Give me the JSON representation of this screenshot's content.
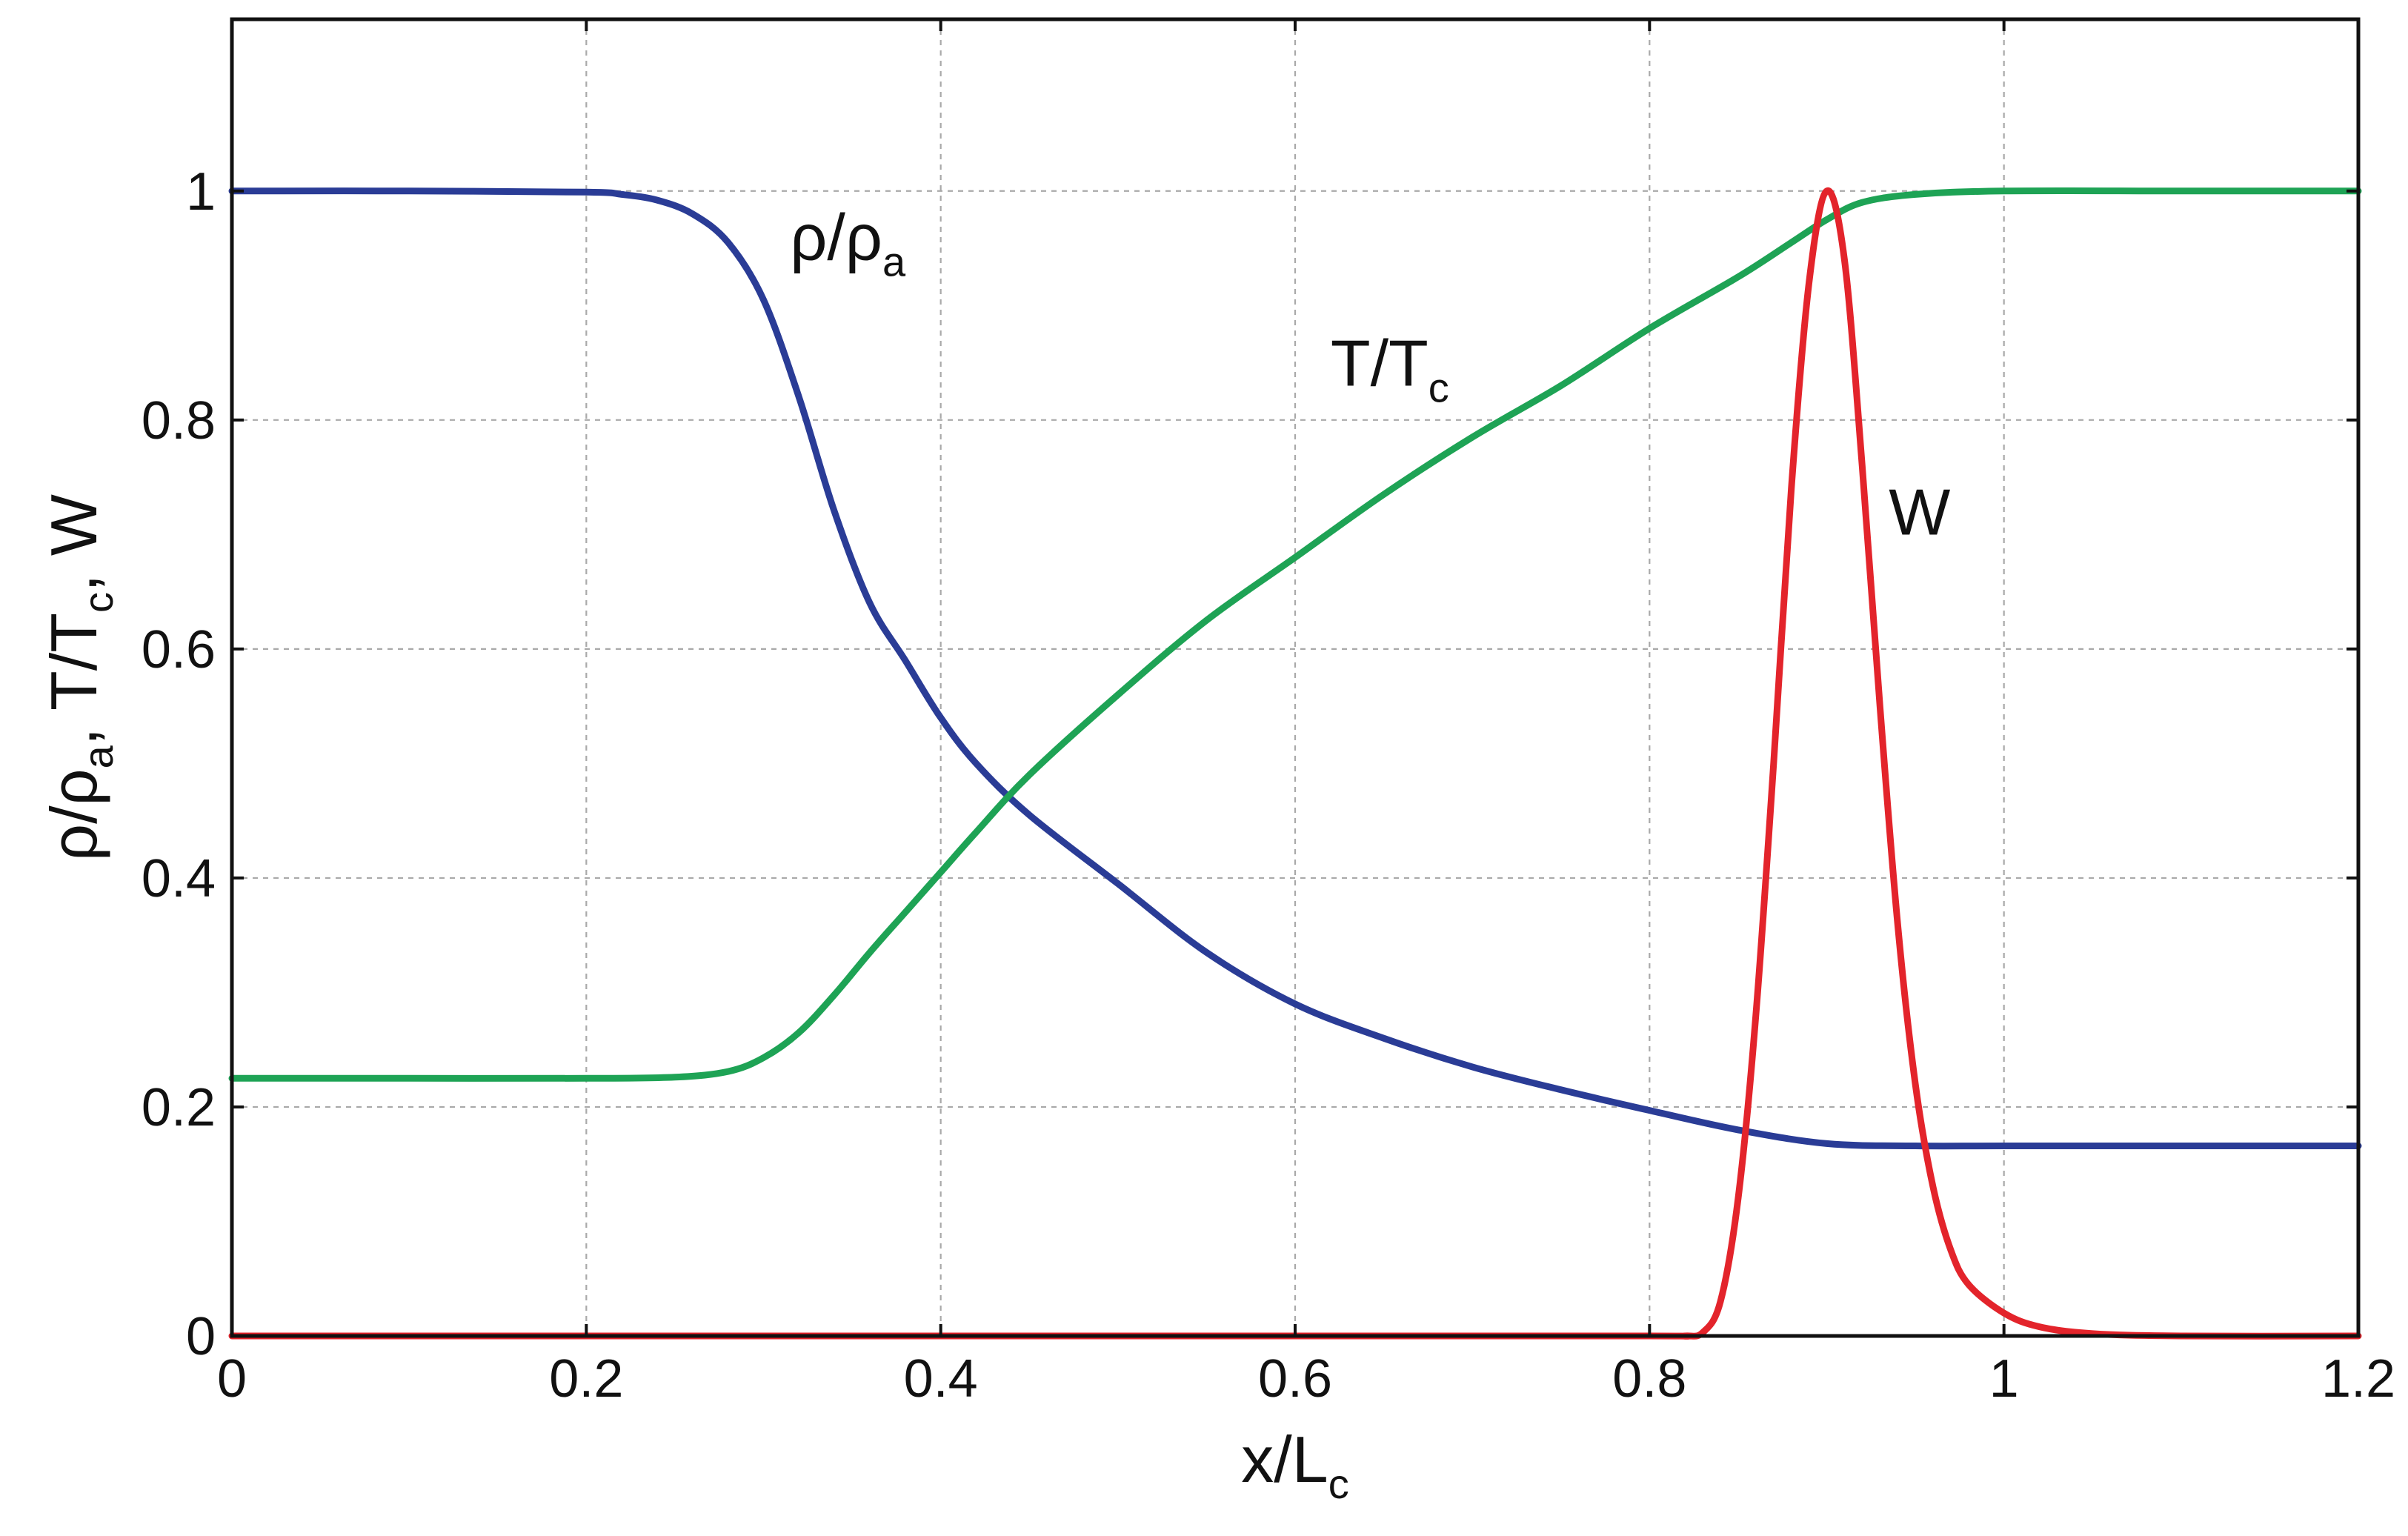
{
  "chart_data": {
    "type": "line",
    "title": "",
    "xlabel": {
      "main": "x/L",
      "sub": "c"
    },
    "ylabel": {
      "parts": [
        {
          "text": "ρ/ρ",
          "sub": "a"
        },
        {
          "text": ", T/T",
          "sub": "c"
        },
        {
          "text": ", W",
          "sub": ""
        }
      ]
    },
    "xlim": [
      0,
      1.2
    ],
    "ylim": [
      0,
      1.15
    ],
    "grid": true,
    "x_ticks": [
      0,
      0.2,
      0.4,
      0.6,
      0.8,
      1,
      1.2
    ],
    "y_ticks": [
      0,
      0.2,
      0.4,
      0.6,
      0.8,
      1
    ],
    "x_tick_labels": [
      "0",
      "0.2",
      "0.4",
      "0.6",
      "0.8",
      "1",
      "1.2"
    ],
    "y_tick_labels": [
      "0",
      "0.2",
      "0.4",
      "0.6",
      "0.8",
      "1"
    ],
    "series": [
      {
        "name": "rho",
        "color": "#2a3c96",
        "label": {
          "main": "ρ/ρ",
          "sub": "a",
          "at": [
            0.315,
            0.94
          ]
        },
        "x": [
          0,
          0.1,
          0.2,
          0.22,
          0.24,
          0.26,
          0.28,
          0.3,
          0.32,
          0.34,
          0.36,
          0.38,
          0.4,
          0.42,
          0.45,
          0.5,
          0.55,
          0.6,
          0.65,
          0.7,
          0.75,
          0.8,
          0.85,
          0.9,
          0.95,
          1.0,
          1.1,
          1.2
        ],
        "y": [
          1.0,
          1.0,
          0.999,
          0.997,
          0.992,
          0.98,
          0.955,
          0.905,
          0.82,
          0.72,
          0.64,
          0.59,
          0.54,
          0.5,
          0.455,
          0.395,
          0.335,
          0.29,
          0.26,
          0.235,
          0.215,
          0.197,
          0.18,
          0.168,
          0.166,
          0.166,
          0.166,
          0.166
        ]
      },
      {
        "name": "T",
        "color": "#1ea355",
        "label": {
          "main": "T/T",
          "sub": "c",
          "at": [
            0.62,
            0.83
          ]
        },
        "x": [
          0,
          0.1,
          0.2,
          0.25,
          0.28,
          0.3,
          0.32,
          0.34,
          0.36,
          0.38,
          0.4,
          0.42,
          0.45,
          0.5,
          0.55,
          0.6,
          0.65,
          0.7,
          0.75,
          0.8,
          0.85,
          0.88,
          0.9,
          0.92,
          0.95,
          1.0,
          1.1,
          1.2
        ],
        "y": [
          0.225,
          0.225,
          0.225,
          0.226,
          0.231,
          0.243,
          0.265,
          0.298,
          0.335,
          0.37,
          0.405,
          0.44,
          0.49,
          0.56,
          0.625,
          0.68,
          0.735,
          0.785,
          0.83,
          0.88,
          0.925,
          0.955,
          0.975,
          0.99,
          0.997,
          1.0,
          1.0,
          1.0
        ]
      },
      {
        "name": "W",
        "color": "#e3242b",
        "label": {
          "main": "W",
          "sub": "",
          "at": [
            0.935,
            0.7
          ]
        },
        "x": [
          0,
          0.2,
          0.4,
          0.6,
          0.8,
          0.82,
          0.83,
          0.84,
          0.85,
          0.86,
          0.87,
          0.88,
          0.89,
          0.9,
          0.91,
          0.92,
          0.93,
          0.94,
          0.95,
          0.96,
          0.97,
          0.98,
          1.0,
          1.02,
          1.05,
          1.1,
          1.2
        ],
        "y": [
          0,
          0,
          0,
          0,
          0,
          0,
          0.003,
          0.03,
          0.12,
          0.28,
          0.5,
          0.74,
          0.92,
          1.0,
          0.94,
          0.76,
          0.55,
          0.36,
          0.22,
          0.13,
          0.075,
          0.045,
          0.02,
          0.008,
          0.002,
          0,
          0
        ]
      }
    ]
  }
}
